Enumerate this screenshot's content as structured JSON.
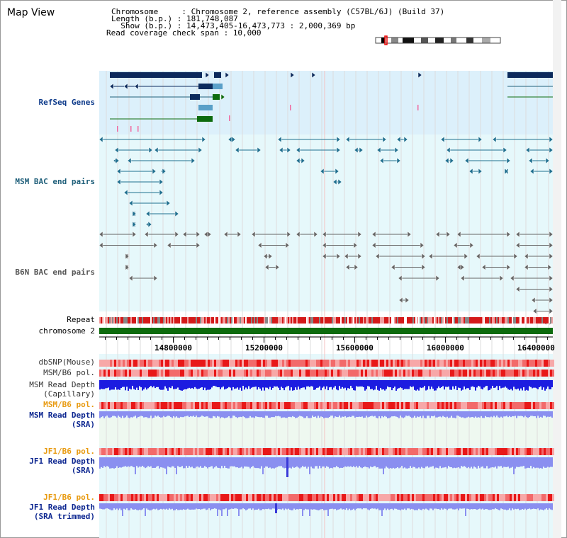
{
  "window": {
    "title": "Map View"
  },
  "info": {
    "chromosome_line": "Chromosome     : Chromosome 2, reference assembly (C57BL/6J) (Build 37)",
    "length_line": "Length (b.p.) : 181,748,087",
    "show_line": "  Show (b.p.) : 14,473,405-16,473,773 : 2,000,369 bp",
    "coverage_line": "Read coverage check span : 10,000"
  },
  "range": {
    "start_bp": 14473405,
    "end_bp": 16473773,
    "chromosome_length_bp": 181748087,
    "coverage_span": 10000
  },
  "tracks": {
    "refseq": "RefSeq Genes",
    "msm_bac": "MSM BAC end pairs",
    "b6n_bac": "B6N BAC end pairs",
    "repeat": "Repeat",
    "chromosome": "chromosome 2",
    "dbsnp": "dbSNP(Mouse)",
    "msm_b6_pol_1": "MSM/B6 pol.",
    "msm_depth_cap_1": "MSM Read Depth",
    "msm_depth_cap_2": "(Capillary)",
    "msm_b6_pol_2": "MSM/B6 pol.",
    "msm_depth_sra_1": "MSM Read Depth",
    "msm_depth_sra_2": "(SRA)",
    "jf1_b6_pol_1": "JF1/B6 pol.",
    "jf1_depth_sra_1": "JF1 Read Depth",
    "jf1_depth_sra_2": "(SRA)",
    "jf1_b6_pol_2": "JF1/B6 pol.",
    "jf1_depth_trim_1": "JF1 Read Depth",
    "jf1_depth_trim_2": "(SRA trimmed)"
  },
  "ruler": {
    "ticks": [
      "14800000",
      "15200000",
      "15600000",
      "16000000",
      "16400000"
    ]
  },
  "colors": {
    "refseq_band": "#dcf0fb",
    "bac_band": "#e6f8fb",
    "light_band": "#eef8f0",
    "gene_dark": "#0b2a5c",
    "gene_green": "#0d6b0d",
    "msm_bac": "#1f6f8f",
    "b6n_bac": "#666666",
    "chromosome_bar": "#0d6b0d",
    "depth_dark_blue": "#1c1ce0",
    "depth_light_blue": "#8a8ff0",
    "pol_red": "#e82020"
  }
}
